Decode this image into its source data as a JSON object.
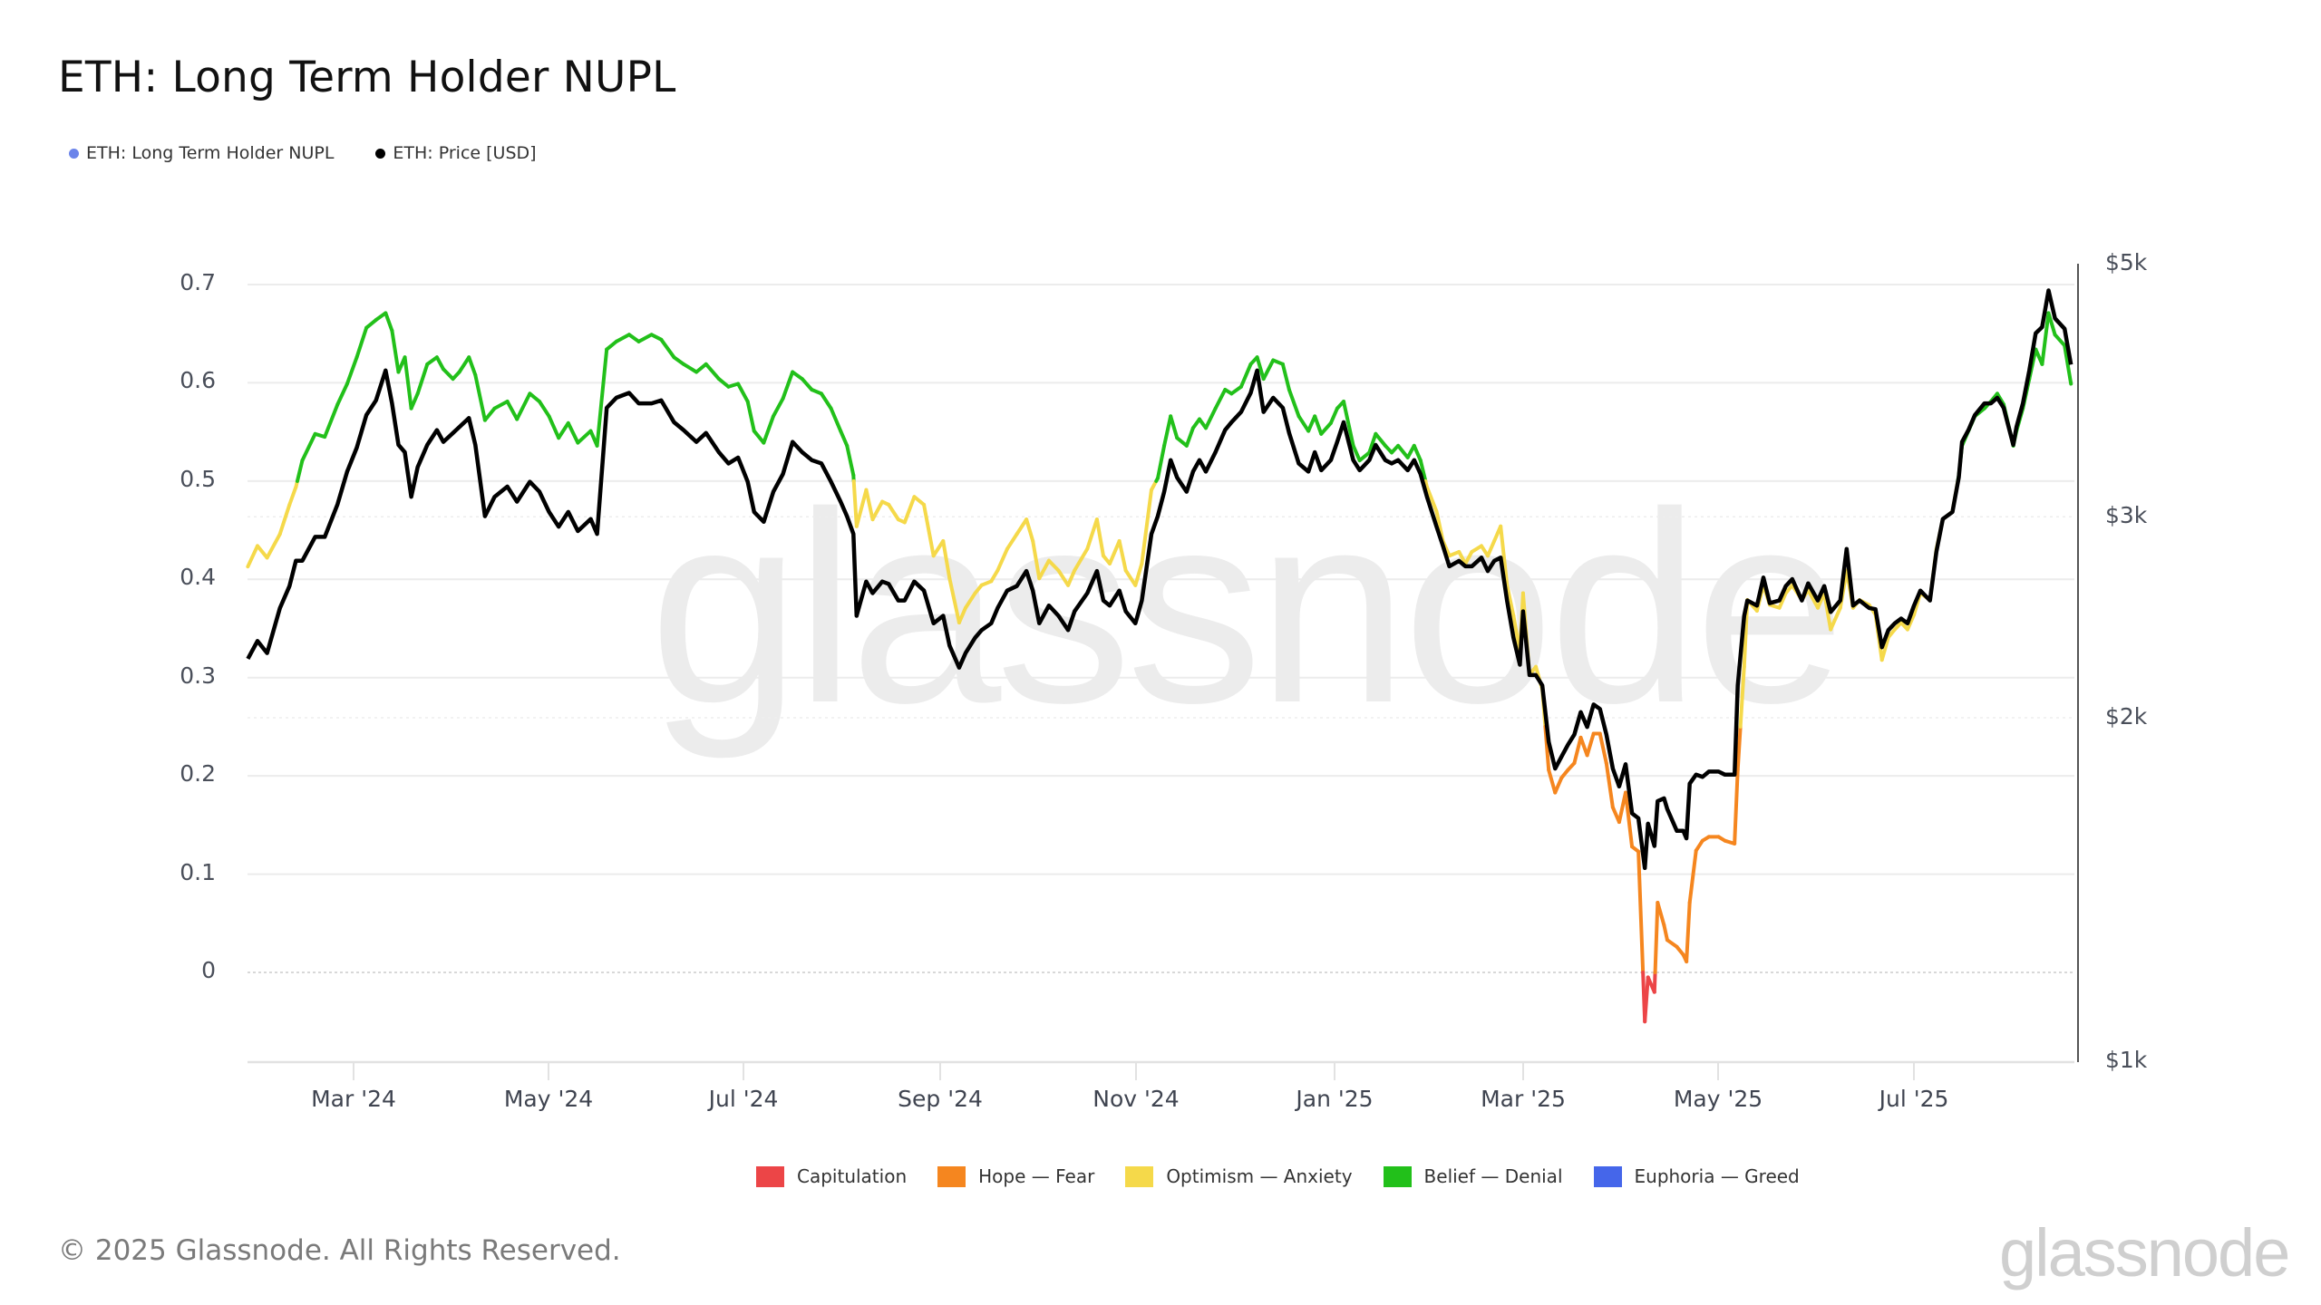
{
  "header": {
    "title": "ETH: Long Term Holder NUPL",
    "legend": [
      {
        "label": "ETH: Long Term Holder NUPL",
        "color": "#6b84ea"
      },
      {
        "label": "ETH: Price [USD]",
        "color": "#000000"
      }
    ]
  },
  "watermark": "glassnode",
  "axes": {
    "left_ticks": [
      "0.7",
      "0.6",
      "0.5",
      "0.4",
      "0.3",
      "0.2",
      "0.1",
      "0"
    ],
    "right_ticks": [
      "$5k",
      "$3k",
      "$2k",
      "$1k"
    ],
    "x_ticks": [
      "Mar '24",
      "May '24",
      "Jul '24",
      "Sep '24",
      "Nov '24",
      "Jan '25",
      "Mar '25",
      "May '25",
      "Jul '25"
    ]
  },
  "zone_legend": [
    {
      "label": "Capitulation",
      "color": "#ec4547"
    },
    {
      "label": "Hope — Fear",
      "color": "#f5861f"
    },
    {
      "label": "Optimism — Anxiety",
      "color": "#f5d94a"
    },
    {
      "label": "Belief — Denial",
      "color": "#22c01a"
    },
    {
      "label": "Euphoria — Greed",
      "color": "#4566ea"
    }
  ],
  "footer": {
    "copyright": "© 2025 Glassnode. All Rights Reserved.",
    "logo": "glassnode"
  },
  "chart_data": {
    "type": "line",
    "title": "ETH: Long Term Holder NUPL",
    "xlabel": "",
    "ylabel_left": "Long Term Holder NUPL",
    "ylabel_right": "ETH: Price [USD] (log)",
    "ylim_left": [
      -0.09,
      0.72
    ],
    "ylim_right": [
      1000,
      5000
    ],
    "y_right_scale": "log",
    "grid": true,
    "legend_position": "top-left",
    "zones": [
      {
        "name": "Capitulation",
        "range": [
          null,
          0
        ],
        "color": "#ec4547"
      },
      {
        "name": "Hope — Fear",
        "range": [
          0,
          0.25
        ],
        "color": "#f5861f"
      },
      {
        "name": "Optimism — Anxiety",
        "range": [
          0.25,
          0.5
        ],
        "color": "#f5d94a"
      },
      {
        "name": "Belief — Denial",
        "range": [
          0.5,
          0.75
        ],
        "color": "#22c01a"
      },
      {
        "name": "Euphoria — Greed",
        "range": [
          0.75,
          null
        ],
        "color": "#4566ea"
      }
    ],
    "series_names": [
      "ETH: Long Term Holder NUPL",
      "ETH: Price [USD]"
    ],
    "columns": [
      "date",
      "nupl",
      "price"
    ],
    "points": [
      [
        "2024-01-28",
        0.413,
        2253
      ],
      [
        "2024-01-31",
        0.434,
        2335
      ],
      [
        "2024-02-03",
        0.422,
        2279
      ],
      [
        "2024-02-07",
        0.446,
        2495
      ],
      [
        "2024-02-10",
        0.476,
        2609
      ],
      [
        "2024-02-12",
        0.494,
        2746
      ],
      [
        "2024-02-14",
        0.521,
        2746
      ],
      [
        "2024-02-18",
        0.548,
        2881
      ],
      [
        "2024-02-21",
        0.545,
        2881
      ],
      [
        "2024-02-25",
        0.578,
        3077
      ],
      [
        "2024-02-28",
        0.599,
        3287
      ],
      [
        "2024-03-02",
        0.626,
        3449
      ],
      [
        "2024-03-05",
        0.656,
        3684
      ],
      [
        "2024-03-08",
        0.664,
        3795
      ],
      [
        "2024-03-11",
        0.671,
        4031
      ],
      [
        "2024-03-13",
        0.653,
        3772
      ],
      [
        "2024-03-15",
        0.611,
        3469
      ],
      [
        "2024-03-17",
        0.626,
        3418
      ],
      [
        "2024-03-19",
        0.574,
        3124
      ],
      [
        "2024-03-21",
        0.589,
        3317
      ],
      [
        "2024-03-24",
        0.619,
        3469
      ],
      [
        "2024-03-27",
        0.626,
        3574
      ],
      [
        "2024-03-29",
        0.614,
        3490
      ],
      [
        "2024-04-01",
        0.604,
        3553
      ],
      [
        "2024-04-03",
        0.611,
        3596
      ],
      [
        "2024-04-06",
        0.626,
        3662
      ],
      [
        "2024-04-08",
        0.608,
        3469
      ],
      [
        "2024-04-11",
        0.562,
        3004
      ],
      [
        "2024-04-14",
        0.574,
        3124
      ],
      [
        "2024-04-18",
        0.581,
        3189
      ],
      [
        "2024-04-21",
        0.563,
        3093
      ],
      [
        "2024-04-25",
        0.589,
        3220
      ],
      [
        "2024-04-28",
        0.581,
        3156
      ],
      [
        "2024-05-01",
        0.566,
        3030
      ],
      [
        "2024-05-04",
        0.544,
        2941
      ],
      [
        "2024-05-07",
        0.559,
        3030
      ],
      [
        "2024-05-10",
        0.539,
        2915
      ],
      [
        "2024-05-14",
        0.551,
        2987
      ],
      [
        "2024-05-16",
        0.536,
        2898
      ],
      [
        "2024-05-19",
        0.634,
        3738
      ],
      [
        "2024-05-22",
        0.642,
        3815
      ],
      [
        "2024-05-26",
        0.649,
        3853
      ],
      [
        "2024-05-29",
        0.642,
        3772
      ],
      [
        "2024-06-02",
        0.649,
        3772
      ],
      [
        "2024-06-05",
        0.644,
        3795
      ],
      [
        "2024-06-09",
        0.626,
        3631
      ],
      [
        "2024-06-12",
        0.619,
        3574
      ],
      [
        "2024-06-16",
        0.611,
        3490
      ],
      [
        "2024-06-19",
        0.619,
        3553
      ],
      [
        "2024-06-23",
        0.604,
        3418
      ],
      [
        "2024-06-26",
        0.596,
        3341
      ],
      [
        "2024-06-29",
        0.599,
        3381
      ],
      [
        "2024-07-02",
        0.581,
        3220
      ],
      [
        "2024-07-04",
        0.551,
        3030
      ],
      [
        "2024-07-07",
        0.539,
        2970
      ],
      [
        "2024-07-10",
        0.566,
        3156
      ],
      [
        "2024-07-13",
        0.584,
        3271
      ],
      [
        "2024-07-16",
        0.611,
        3490
      ],
      [
        "2024-07-19",
        0.604,
        3418
      ],
      [
        "2024-07-22",
        0.593,
        3364
      ],
      [
        "2024-07-25",
        0.589,
        3341
      ],
      [
        "2024-07-28",
        0.574,
        3220
      ],
      [
        "2024-07-31",
        0.551,
        3093
      ],
      [
        "2024-08-02",
        0.536,
        3004
      ],
      [
        "2024-08-04",
        0.506,
        2898
      ],
      [
        "2024-08-05",
        0.454,
        2457
      ],
      [
        "2024-08-08",
        0.491,
        2633
      ],
      [
        "2024-08-10",
        0.461,
        2572
      ],
      [
        "2024-08-13",
        0.479,
        2633
      ],
      [
        "2024-08-15",
        0.476,
        2620
      ],
      [
        "2024-08-18",
        0.461,
        2534
      ],
      [
        "2024-08-20",
        0.458,
        2534
      ],
      [
        "2024-08-23",
        0.484,
        2633
      ],
      [
        "2024-08-26",
        0.476,
        2585
      ],
      [
        "2024-08-29",
        0.424,
        2420
      ],
      [
        "2024-09-01",
        0.439,
        2457
      ],
      [
        "2024-09-03",
        0.401,
        2314
      ],
      [
        "2024-09-06",
        0.356,
        2213
      ],
      [
        "2024-09-08",
        0.371,
        2279
      ],
      [
        "2024-09-11",
        0.386,
        2351
      ],
      [
        "2024-09-13",
        0.394,
        2387
      ],
      [
        "2024-09-16",
        0.398,
        2420
      ],
      [
        "2024-09-18",
        0.409,
        2495
      ],
      [
        "2024-09-21",
        0.431,
        2585
      ],
      [
        "2024-09-24",
        0.446,
        2609
      ],
      [
        "2024-09-27",
        0.461,
        2689
      ],
      [
        "2024-09-29",
        0.439,
        2585
      ],
      [
        "2024-10-01",
        0.401,
        2420
      ],
      [
        "2024-10-04",
        0.419,
        2508
      ],
      [
        "2024-10-07",
        0.409,
        2457
      ],
      [
        "2024-10-10",
        0.394,
        2387
      ],
      [
        "2024-10-12",
        0.409,
        2479
      ],
      [
        "2024-10-16",
        0.431,
        2572
      ],
      [
        "2024-10-19",
        0.461,
        2689
      ],
      [
        "2024-10-21",
        0.424,
        2534
      ],
      [
        "2024-10-23",
        0.416,
        2508
      ],
      [
        "2024-10-26",
        0.439,
        2585
      ],
      [
        "2024-10-28",
        0.409,
        2479
      ],
      [
        "2024-10-31",
        0.394,
        2420
      ],
      [
        "2024-11-02",
        0.416,
        2534
      ],
      [
        "2024-11-05",
        0.491,
        2898
      ],
      [
        "2024-11-07",
        0.503,
        3004
      ],
      [
        "2024-11-09",
        0.536,
        3156
      ],
      [
        "2024-11-11",
        0.566,
        3364
      ],
      [
        "2024-11-13",
        0.544,
        3249
      ],
      [
        "2024-11-16",
        0.536,
        3156
      ],
      [
        "2024-11-18",
        0.554,
        3287
      ],
      [
        "2024-11-20",
        0.563,
        3364
      ],
      [
        "2024-11-22",
        0.554,
        3287
      ],
      [
        "2024-11-25",
        0.574,
        3418
      ],
      [
        "2024-11-28",
        0.593,
        3574
      ],
      [
        "2024-11-30",
        0.589,
        3631
      ],
      [
        "2024-12-03",
        0.596,
        3707
      ],
      [
        "2024-12-06",
        0.619,
        3853
      ],
      [
        "2024-12-08",
        0.626,
        4031
      ],
      [
        "2024-12-10",
        0.604,
        3707
      ],
      [
        "2024-12-13",
        0.623,
        3815
      ],
      [
        "2024-12-16",
        0.619,
        3738
      ],
      [
        "2024-12-18",
        0.593,
        3553
      ],
      [
        "2024-12-21",
        0.566,
        3341
      ],
      [
        "2024-12-24",
        0.551,
        3287
      ],
      [
        "2024-12-26",
        0.566,
        3418
      ],
      [
        "2024-12-28",
        0.548,
        3296
      ],
      [
        "2024-12-31",
        0.559,
        3364
      ],
      [
        "2025-01-02",
        0.574,
        3490
      ],
      [
        "2025-01-04",
        0.581,
        3631
      ],
      [
        "2025-01-07",
        0.536,
        3364
      ],
      [
        "2025-01-09",
        0.521,
        3296
      ],
      [
        "2025-01-12",
        0.529,
        3364
      ],
      [
        "2025-01-14",
        0.548,
        3469
      ],
      [
        "2025-01-17",
        0.536,
        3364
      ],
      [
        "2025-01-19",
        0.529,
        3341
      ],
      [
        "2025-01-21",
        0.536,
        3364
      ],
      [
        "2025-01-24",
        0.524,
        3296
      ],
      [
        "2025-01-26",
        0.536,
        3364
      ],
      [
        "2025-01-28",
        0.521,
        3271
      ],
      [
        "2025-01-30",
        0.494,
        3124
      ],
      [
        "2025-02-02",
        0.469,
        2941
      ],
      [
        "2025-02-04",
        0.439,
        2828
      ],
      [
        "2025-02-06",
        0.424,
        2715
      ],
      [
        "2025-02-09",
        0.428,
        2745
      ],
      [
        "2025-02-11",
        0.416,
        2715
      ],
      [
        "2025-02-13",
        0.428,
        2715
      ],
      [
        "2025-02-16",
        0.434,
        2763
      ],
      [
        "2025-02-18",
        0.424,
        2689
      ],
      [
        "2025-02-20",
        0.439,
        2745
      ],
      [
        "2025-02-22",
        0.454,
        2763
      ],
      [
        "2025-02-24",
        0.394,
        2534
      ],
      [
        "2025-02-26",
        0.363,
        2351
      ],
      [
        "2025-02-28",
        0.326,
        2226
      ],
      [
        "2025-03-01",
        0.386,
        2479
      ],
      [
        "2025-03-03",
        0.303,
        2180
      ],
      [
        "2025-03-05",
        0.311,
        2180
      ],
      [
        "2025-03-07",
        0.288,
        2135
      ],
      [
        "2025-03-09",
        0.206,
        1905
      ],
      [
        "2025-03-11",
        0.183,
        1805
      ],
      [
        "2025-03-13",
        0.198,
        1849
      ],
      [
        "2025-03-15",
        0.206,
        1894
      ],
      [
        "2025-03-17",
        0.213,
        1934
      ],
      [
        "2025-03-19",
        0.239,
        2023
      ],
      [
        "2025-03-21",
        0.221,
        1963
      ],
      [
        "2025-03-23",
        0.243,
        2054
      ],
      [
        "2025-03-25",
        0.243,
        2036
      ],
      [
        "2025-03-27",
        0.213,
        1934
      ],
      [
        "2025-03-29",
        0.168,
        1805
      ],
      [
        "2025-03-31",
        0.153,
        1741
      ],
      [
        "2025-04-02",
        0.183,
        1821
      ],
      [
        "2025-04-04",
        0.128,
        1649
      ],
      [
        "2025-04-06",
        0.123,
        1633
      ],
      [
        "2025-04-08",
        -0.05,
        1477
      ],
      [
        "2025-04-09",
        -0.005,
        1615
      ],
      [
        "2025-04-11",
        -0.02,
        1544
      ],
      [
        "2025-04-12",
        0.071,
        1690
      ],
      [
        "2025-04-14",
        0.048,
        1700
      ],
      [
        "2025-04-15",
        0.033,
        1664
      ],
      [
        "2025-04-18",
        0.026,
        1592
      ],
      [
        "2025-04-20",
        0.018,
        1592
      ],
      [
        "2025-04-21",
        0.011,
        1568
      ],
      [
        "2025-04-22",
        0.071,
        1751
      ],
      [
        "2025-04-24",
        0.124,
        1783
      ],
      [
        "2025-04-26",
        0.134,
        1775
      ],
      [
        "2025-04-28",
        0.138,
        1794
      ],
      [
        "2025-05-01",
        0.138,
        1794
      ],
      [
        "2025-05-03",
        0.134,
        1783
      ],
      [
        "2025-05-06",
        0.131,
        1783
      ],
      [
        "2025-05-07",
        0.206,
        2135
      ],
      [
        "2025-05-09",
        0.311,
        2457
      ],
      [
        "2025-05-10",
        0.379,
        2534
      ],
      [
        "2025-05-13",
        0.368,
        2508
      ],
      [
        "2025-05-15",
        0.394,
        2654
      ],
      [
        "2025-05-17",
        0.374,
        2520
      ],
      [
        "2025-05-20",
        0.371,
        2534
      ],
      [
        "2025-05-22",
        0.386,
        2609
      ],
      [
        "2025-05-24",
        0.394,
        2646
      ],
      [
        "2025-05-27",
        0.379,
        2534
      ],
      [
        "2025-05-29",
        0.389,
        2623
      ],
      [
        "2025-06-01",
        0.371,
        2534
      ],
      [
        "2025-06-03",
        0.386,
        2609
      ],
      [
        "2025-06-05",
        0.349,
        2476
      ],
      [
        "2025-06-08",
        0.371,
        2534
      ],
      [
        "2025-06-10",
        0.409,
        2812
      ],
      [
        "2025-06-12",
        0.371,
        2508
      ],
      [
        "2025-06-14",
        0.379,
        2534
      ],
      [
        "2025-06-17",
        0.374,
        2496
      ],
      [
        "2025-06-19",
        0.364,
        2490
      ],
      [
        "2025-06-21",
        0.318,
        2306
      ],
      [
        "2025-06-23",
        0.341,
        2387
      ],
      [
        "2025-06-25",
        0.349,
        2420
      ],
      [
        "2025-06-27",
        0.356,
        2443
      ],
      [
        "2025-06-29",
        0.349,
        2420
      ],
      [
        "2025-07-01",
        0.364,
        2508
      ],
      [
        "2025-07-03",
        0.386,
        2585
      ],
      [
        "2025-07-06",
        0.379,
        2534
      ],
      [
        "2025-07-08",
        0.431,
        2796
      ],
      [
        "2025-07-10",
        0.461,
        2987
      ],
      [
        "2025-07-13",
        0.469,
        3030
      ],
      [
        "2025-07-15",
        0.506,
        3249
      ],
      [
        "2025-07-16",
        0.536,
        3490
      ],
      [
        "2025-07-18",
        0.551,
        3574
      ],
      [
        "2025-07-20",
        0.566,
        3684
      ],
      [
        "2025-07-23",
        0.574,
        3772
      ],
      [
        "2025-07-25",
        0.581,
        3772
      ],
      [
        "2025-07-27",
        0.589,
        3815
      ],
      [
        "2025-07-29",
        0.578,
        3738
      ],
      [
        "2025-08-01",
        0.536,
        3469
      ],
      [
        "2025-08-02",
        0.551,
        3596
      ],
      [
        "2025-08-04",
        0.574,
        3772
      ],
      [
        "2025-08-06",
        0.604,
        4031
      ],
      [
        "2025-08-08",
        0.634,
        4345
      ],
      [
        "2025-08-10",
        0.619,
        4400
      ],
      [
        "2025-08-12",
        0.671,
        4737
      ],
      [
        "2025-08-14",
        0.649,
        4478
      ],
      [
        "2025-08-17",
        0.638,
        4385
      ],
      [
        "2025-08-19",
        0.599,
        4079
      ]
    ]
  }
}
